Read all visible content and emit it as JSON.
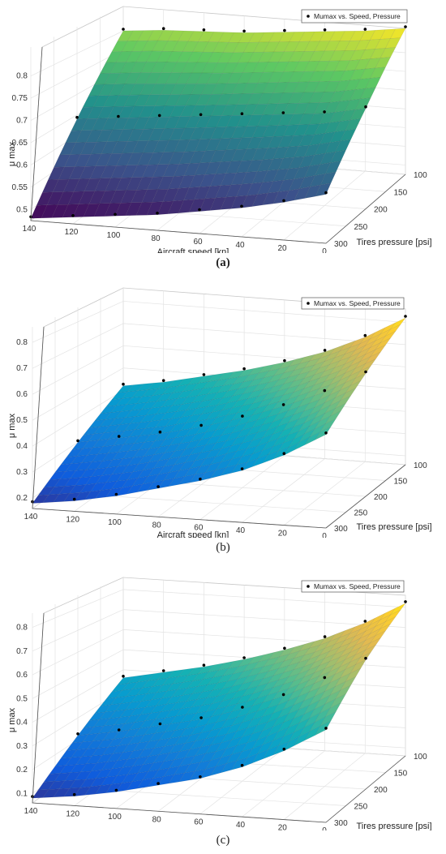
{
  "chart_data": [
    {
      "type": "surface",
      "caption": "(a)",
      "legend": "Mumax vs. Speed, Pressure",
      "xlabel": "Aircraft speed [kn]",
      "ylabel": "Tires pressure [psi]",
      "zlabel": "μ max",
      "x_ticks": [
        "140",
        "120",
        "100",
        "80",
        "60",
        "40",
        "20",
        "0"
      ],
      "y_ticks": [
        "100",
        "150",
        "200",
        "250",
        "300"
      ],
      "z_ticks": [
        "0.5",
        "0.55",
        "0.6",
        "0.65",
        "0.7",
        "0.75",
        "0.8"
      ],
      "grid": true,
      "legend_position": "top-right",
      "colormap": "viridis-like",
      "corners": {
        "speed140_pressure300": 0.48,
        "speed0_pressure300": 0.585,
        "speed140_pressure100": 0.8,
        "speed0_pressure100": 0.865
      },
      "points": [
        {
          "speed": 140,
          "pressure": 300,
          "mu": 0.48
        },
        {
          "speed": 120,
          "pressure": 300,
          "mu": 0.49
        },
        {
          "speed": 100,
          "pressure": 300,
          "mu": 0.5
        },
        {
          "speed": 80,
          "pressure": 300,
          "mu": 0.51
        },
        {
          "speed": 60,
          "pressure": 300,
          "mu": 0.525
        },
        {
          "speed": 40,
          "pressure": 300,
          "mu": 0.54
        },
        {
          "speed": 20,
          "pressure": 300,
          "mu": 0.56
        },
        {
          "speed": 0,
          "pressure": 300,
          "mu": 0.585
        },
        {
          "speed": 140,
          "pressure": 200,
          "mu": 0.64
        },
        {
          "speed": 120,
          "pressure": 200,
          "mu": 0.65
        },
        {
          "speed": 100,
          "pressure": 200,
          "mu": 0.66
        },
        {
          "speed": 80,
          "pressure": 200,
          "mu": 0.67
        },
        {
          "speed": 60,
          "pressure": 200,
          "mu": 0.68
        },
        {
          "speed": 40,
          "pressure": 200,
          "mu": 0.69
        },
        {
          "speed": 20,
          "pressure": 200,
          "mu": 0.7
        },
        {
          "speed": 0,
          "pressure": 200,
          "mu": 0.72
        },
        {
          "speed": 140,
          "pressure": 100,
          "mu": 0.8
        },
        {
          "speed": 120,
          "pressure": 100,
          "mu": 0.81
        },
        {
          "speed": 100,
          "pressure": 100,
          "mu": 0.815
        },
        {
          "speed": 80,
          "pressure": 100,
          "mu": 0.82
        },
        {
          "speed": 60,
          "pressure": 100,
          "mu": 0.83
        },
        {
          "speed": 40,
          "pressure": 100,
          "mu": 0.84
        },
        {
          "speed": 20,
          "pressure": 100,
          "mu": 0.85
        },
        {
          "speed": 0,
          "pressure": 100,
          "mu": 0.865
        }
      ]
    },
    {
      "type": "surface",
      "caption": "(b)",
      "legend": "Mumax vs. Speed, Pressure",
      "xlabel": "Aircraft speed [kn]",
      "ylabel": "Tires pressure [psi]",
      "zlabel": "μ max",
      "x_ticks": [
        "140",
        "120",
        "100",
        "80",
        "60",
        "40",
        "20",
        "0"
      ],
      "y_ticks": [
        "100",
        "150",
        "200",
        "250",
        "300"
      ],
      "z_ticks": [
        "0.2",
        "0.3",
        "0.4",
        "0.5",
        "0.6",
        "0.7",
        "0.8"
      ],
      "grid": true,
      "legend_position": "top-right",
      "colormap": "parula-like",
      "points": [
        {
          "speed": 140,
          "pressure": 300,
          "mu": 0.18
        },
        {
          "speed": 120,
          "pressure": 300,
          "mu": 0.2
        },
        {
          "speed": 100,
          "pressure": 300,
          "mu": 0.23
        },
        {
          "speed": 80,
          "pressure": 300,
          "mu": 0.27
        },
        {
          "speed": 60,
          "pressure": 300,
          "mu": 0.31
        },
        {
          "speed": 40,
          "pressure": 300,
          "mu": 0.36
        },
        {
          "speed": 20,
          "pressure": 300,
          "mu": 0.43
        },
        {
          "speed": 0,
          "pressure": 300,
          "mu": 0.52
        },
        {
          "speed": 140,
          "pressure": 200,
          "mu": 0.3
        },
        {
          "speed": 120,
          "pressure": 200,
          "mu": 0.33
        },
        {
          "speed": 100,
          "pressure": 200,
          "mu": 0.36
        },
        {
          "speed": 80,
          "pressure": 200,
          "mu": 0.4
        },
        {
          "speed": 60,
          "pressure": 200,
          "mu": 0.45
        },
        {
          "speed": 40,
          "pressure": 200,
          "mu": 0.51
        },
        {
          "speed": 20,
          "pressure": 200,
          "mu": 0.58
        },
        {
          "speed": 0,
          "pressure": 200,
          "mu": 0.67
        },
        {
          "speed": 140,
          "pressure": 100,
          "mu": 0.42
        },
        {
          "speed": 120,
          "pressure": 100,
          "mu": 0.45
        },
        {
          "speed": 100,
          "pressure": 100,
          "mu": 0.49
        },
        {
          "speed": 80,
          "pressure": 100,
          "mu": 0.53
        },
        {
          "speed": 60,
          "pressure": 100,
          "mu": 0.58
        },
        {
          "speed": 40,
          "pressure": 100,
          "mu": 0.64
        },
        {
          "speed": 20,
          "pressure": 100,
          "mu": 0.72
        },
        {
          "speed": 0,
          "pressure": 100,
          "mu": 0.82
        }
      ]
    },
    {
      "type": "surface",
      "caption": "(c)",
      "legend": "Mumax vs. Speed, Pressure",
      "xlabel": "Aircraft speed [kn]",
      "ylabel": "Tires pressure [psi]",
      "zlabel": "μ max",
      "x_ticks": [
        "140",
        "120",
        "100",
        "80",
        "60",
        "40",
        "20",
        "0"
      ],
      "y_ticks": [
        "100",
        "150",
        "200",
        "250",
        "300"
      ],
      "z_ticks": [
        "0.1",
        "0.2",
        "0.3",
        "0.4",
        "0.5",
        "0.6",
        "0.7",
        "0.8"
      ],
      "grid": true,
      "legend_position": "top-right",
      "colormap": "parula-like",
      "points": [
        {
          "speed": 140,
          "pressure": 300,
          "mu": 0.08
        },
        {
          "speed": 120,
          "pressure": 300,
          "mu": 0.1
        },
        {
          "speed": 100,
          "pressure": 300,
          "mu": 0.13
        },
        {
          "speed": 80,
          "pressure": 300,
          "mu": 0.17
        },
        {
          "speed": 60,
          "pressure": 300,
          "mu": 0.21
        },
        {
          "speed": 40,
          "pressure": 300,
          "mu": 0.27
        },
        {
          "speed": 20,
          "pressure": 300,
          "mu": 0.35
        },
        {
          "speed": 0,
          "pressure": 300,
          "mu": 0.45
        },
        {
          "speed": 140,
          "pressure": 200,
          "mu": 0.22
        },
        {
          "speed": 120,
          "pressure": 200,
          "mu": 0.25
        },
        {
          "speed": 100,
          "pressure": 200,
          "mu": 0.29
        },
        {
          "speed": 80,
          "pressure": 200,
          "mu": 0.33
        },
        {
          "speed": 60,
          "pressure": 200,
          "mu": 0.39
        },
        {
          "speed": 40,
          "pressure": 200,
          "mu": 0.46
        },
        {
          "speed": 20,
          "pressure": 200,
          "mu": 0.55
        },
        {
          "speed": 0,
          "pressure": 200,
          "mu": 0.65
        },
        {
          "speed": 140,
          "pressure": 100,
          "mu": 0.36
        },
        {
          "speed": 120,
          "pressure": 100,
          "mu": 0.4
        },
        {
          "speed": 100,
          "pressure": 100,
          "mu": 0.44
        },
        {
          "speed": 80,
          "pressure": 100,
          "mu": 0.49
        },
        {
          "speed": 60,
          "pressure": 100,
          "mu": 0.55
        },
        {
          "speed": 40,
          "pressure": 100,
          "mu": 0.62
        },
        {
          "speed": 20,
          "pressure": 100,
          "mu": 0.71
        },
        {
          "speed": 0,
          "pressure": 100,
          "mu": 0.82
        }
      ]
    }
  ]
}
